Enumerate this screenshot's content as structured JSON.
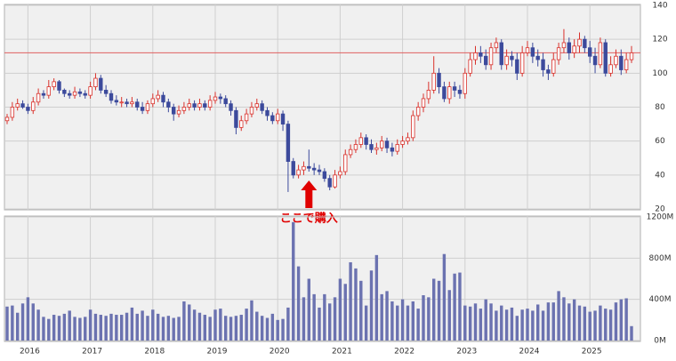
{
  "chart_data": [
    {
      "type": "candlestick",
      "categories": [
        null,
        null,
        null,
        null,
        "2016",
        null,
        null,
        null,
        null,
        null,
        null,
        null,
        null,
        null,
        null,
        null,
        "2017",
        null,
        null,
        null,
        null,
        null,
        null,
        null,
        null,
        null,
        null,
        null,
        "2018",
        null,
        null,
        null,
        null,
        null,
        null,
        null,
        null,
        null,
        null,
        null,
        "2019",
        null,
        null,
        null,
        null,
        null,
        null,
        null,
        null,
        null,
        null,
        null,
        "2020",
        null,
        null,
        null,
        null,
        null,
        null,
        null,
        null,
        null,
        null,
        null,
        "2021",
        null,
        null,
        null,
        null,
        null,
        null,
        null,
        null,
        null,
        null,
        null,
        "2022",
        null,
        null,
        null,
        null,
        null,
        null,
        null,
        null,
        null,
        null,
        null,
        "2023",
        null,
        null,
        null,
        null,
        null,
        null,
        null,
        null,
        null,
        null,
        null,
        "2024",
        null,
        null,
        null,
        null,
        null,
        null,
        null,
        null,
        null,
        null,
        null,
        "2025",
        null,
        null,
        null,
        null,
        null,
        null,
        null,
        null
      ],
      "open": [
        72,
        74,
        80,
        82,
        80,
        78,
        83,
        88,
        87,
        92,
        95,
        90,
        88,
        87,
        89,
        88,
        87,
        92,
        97,
        90,
        88,
        84,
        83,
        83,
        82,
        83,
        80,
        78,
        82,
        85,
        87,
        83,
        80,
        76,
        78,
        80,
        82,
        80,
        82,
        80,
        84,
        86,
        85,
        82,
        78,
        68,
        72,
        76,
        80,
        82,
        78,
        75,
        72,
        76,
        70,
        48,
        40,
        43,
        45,
        44,
        43,
        42,
        38,
        33,
        40,
        42,
        52,
        55,
        58,
        62,
        58,
        55,
        56,
        60,
        56,
        54,
        58,
        60,
        62,
        75,
        80,
        85,
        90,
        100,
        92,
        85,
        92,
        90,
        88,
        100,
        108,
        112,
        110,
        105,
        115,
        118,
        105,
        110,
        108,
        100,
        112,
        115,
        110,
        108,
        102,
        100,
        108,
        115,
        118,
        112,
        116,
        120,
        115,
        110,
        105,
        118,
        100,
        105,
        110,
        102,
        108
      ],
      "high": [
        76,
        83,
        85,
        84,
        82,
        86,
        91,
        90,
        96,
        97,
        96,
        91,
        90,
        92,
        91,
        90,
        95,
        100,
        99,
        93,
        90,
        87,
        86,
        85,
        86,
        85,
        83,
        84,
        88,
        90,
        89,
        85,
        82,
        81,
        83,
        85,
        84,
        85,
        84,
        87,
        89,
        88,
        87,
        84,
        80,
        75,
        79,
        83,
        85,
        84,
        80,
        77,
        79,
        78,
        72,
        50,
        46,
        48,
        55,
        47,
        46,
        44,
        40,
        43,
        45,
        55,
        58,
        61,
        65,
        64,
        61,
        59,
        63,
        62,
        59,
        61,
        63,
        65,
        78,
        83,
        88,
        95,
        110,
        103,
        95,
        95,
        95,
        93,
        103,
        112,
        116,
        116,
        114,
        118,
        121,
        120,
        114,
        113,
        112,
        116,
        119,
        118,
        114,
        112,
        105,
        112,
        118,
        126,
        121,
        120,
        124,
        122,
        119,
        115,
        121,
        120,
        110,
        114,
        114,
        112,
        116
      ],
      "low": [
        70,
        72,
        78,
        79,
        76,
        76,
        81,
        85,
        85,
        90,
        88,
        86,
        85,
        85,
        86,
        85,
        85,
        90,
        88,
        86,
        82,
        81,
        80,
        80,
        80,
        78,
        76,
        76,
        80,
        83,
        80,
        77,
        72,
        74,
        76,
        78,
        78,
        78,
        78,
        78,
        82,
        82,
        80,
        75,
        64,
        66,
        70,
        74,
        78,
        76,
        72,
        70,
        70,
        66,
        30,
        38,
        38,
        40,
        42,
        40,
        40,
        36,
        31,
        32,
        38,
        40,
        50,
        53,
        56,
        55,
        53,
        52,
        54,
        53,
        51,
        52,
        56,
        58,
        60,
        72,
        77,
        82,
        88,
        88,
        83,
        82,
        86,
        85,
        85,
        98,
        105,
        106,
        102,
        102,
        112,
        102,
        102,
        104,
        96,
        98,
        110,
        106,
        104,
        98,
        96,
        98,
        105,
        112,
        108,
        109,
        112,
        112,
        106,
        100,
        103,
        98,
        98,
        103,
        99,
        100,
        106
      ],
      "close": [
        74,
        80,
        82,
        80,
        78,
        83,
        88,
        87,
        92,
        95,
        90,
        88,
        87,
        89,
        88,
        87,
        92,
        97,
        90,
        88,
        84,
        83,
        83,
        82,
        83,
        80,
        78,
        82,
        85,
        87,
        83,
        80,
        76,
        78,
        80,
        82,
        80,
        82,
        80,
        84,
        86,
        85,
        82,
        78,
        68,
        72,
        76,
        80,
        82,
        78,
        75,
        72,
        76,
        70,
        48,
        40,
        43,
        45,
        44,
        43,
        42,
        38,
        33,
        40,
        42,
        52,
        55,
        58,
        62,
        58,
        55,
        56,
        60,
        56,
        54,
        58,
        60,
        62,
        75,
        80,
        85,
        90,
        100,
        92,
        85,
        92,
        90,
        88,
        100,
        108,
        112,
        110,
        105,
        115,
        118,
        105,
        110,
        108,
        100,
        112,
        115,
        110,
        108,
        102,
        100,
        108,
        115,
        118,
        112,
        116,
        120,
        115,
        110,
        105,
        118,
        100,
        105,
        110,
        102,
        108,
        112
      ],
      "up_color": "#d9312b",
      "down_color": "#3c4a9c",
      "ylim": [
        20,
        140
      ],
      "yticks": [
        20,
        40,
        60,
        80,
        100,
        120,
        140
      ],
      "grid": true,
      "reference_line": 112,
      "reference_color": "#e06060",
      "annotation": "ここで購入",
      "annotation_index": 58,
      "annotation_color": "#e00000"
    },
    {
      "type": "bar",
      "color": "#6b72b0",
      "values": [
        330,
        340,
        270,
        360,
        420,
        360,
        300,
        230,
        210,
        250,
        240,
        260,
        290,
        230,
        220,
        230,
        300,
        260,
        250,
        240,
        260,
        250,
        250,
        270,
        320,
        260,
        290,
        240,
        300,
        260,
        230,
        240,
        220,
        230,
        380,
        350,
        300,
        270,
        250,
        230,
        300,
        310,
        240,
        230,
        240,
        250,
        310,
        390,
        280,
        240,
        220,
        260,
        200,
        210,
        320,
        1150,
        720,
        420,
        600,
        450,
        320,
        450,
        360,
        420,
        600,
        550,
        760,
        700,
        580,
        340,
        680,
        830,
        450,
        480,
        380,
        340,
        400,
        340,
        380,
        310,
        440,
        420,
        600,
        580,
        840,
        490,
        650,
        660,
        340,
        330,
        360,
        310,
        400,
        360,
        290,
        340,
        300,
        320,
        240,
        300,
        310,
        290,
        350,
        290,
        370,
        370,
        480,
        420,
        360,
        400,
        340,
        330,
        280,
        290,
        340,
        310,
        300,
        370,
        400,
        410,
        140
      ],
      "ylim": [
        0,
        1200
      ],
      "yticks": [
        {
          "value": 0,
          "label": "0M"
        },
        {
          "value": 400,
          "label": "400M"
        },
        {
          "value": 800,
          "label": "800M"
        },
        {
          "value": 1200,
          "label": "1200M"
        }
      ],
      "grid": true
    }
  ]
}
